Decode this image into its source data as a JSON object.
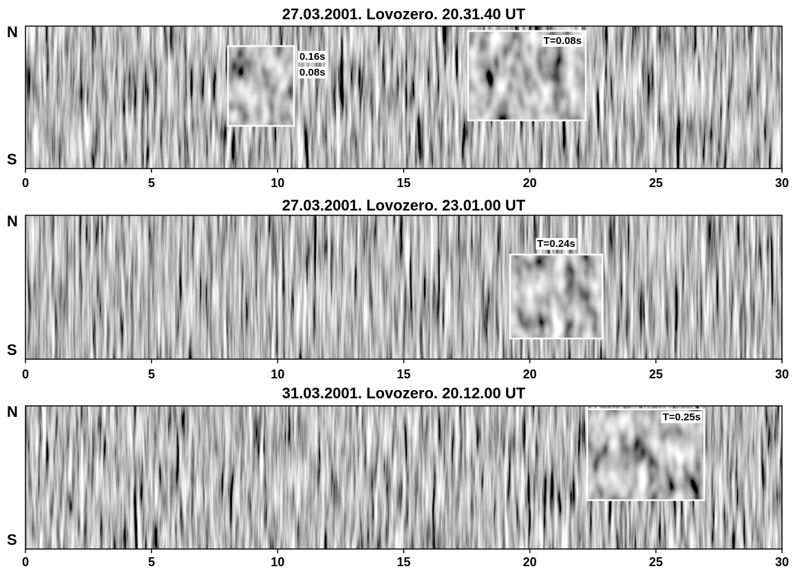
{
  "panels": [
    {
      "title": "27.03.2001. Lovozero. 20.31.40 UT",
      "top_label": "N",
      "bottom_label": "S",
      "xlim": [
        0,
        30
      ],
      "xticks": [
        0,
        5,
        10,
        15,
        20,
        25,
        30
      ],
      "insets": [
        {
          "labels": [
            "0.16s",
            "0.08s"
          ]
        },
        {
          "labels": [
            "T=0.08s"
          ]
        }
      ]
    },
    {
      "title": "27.03.2001. Lovozero. 23.01.00 UT",
      "top_label": "N",
      "bottom_label": "S",
      "xlim": [
        0,
        30
      ],
      "xticks": [
        0,
        5,
        10,
        15,
        20,
        25,
        30
      ],
      "insets": [
        {
          "labels": [
            "T=0.24s"
          ]
        }
      ]
    },
    {
      "title": "31.03.2001. Lovozero. 20.12.00 UT",
      "top_label": "N",
      "bottom_label": "S",
      "xlim": [
        0,
        30
      ],
      "xticks": [
        0,
        5,
        10,
        15,
        20,
        25,
        30
      ],
      "insets": [
        {
          "labels": [
            "T=0.25s"
          ]
        }
      ]
    }
  ]
}
